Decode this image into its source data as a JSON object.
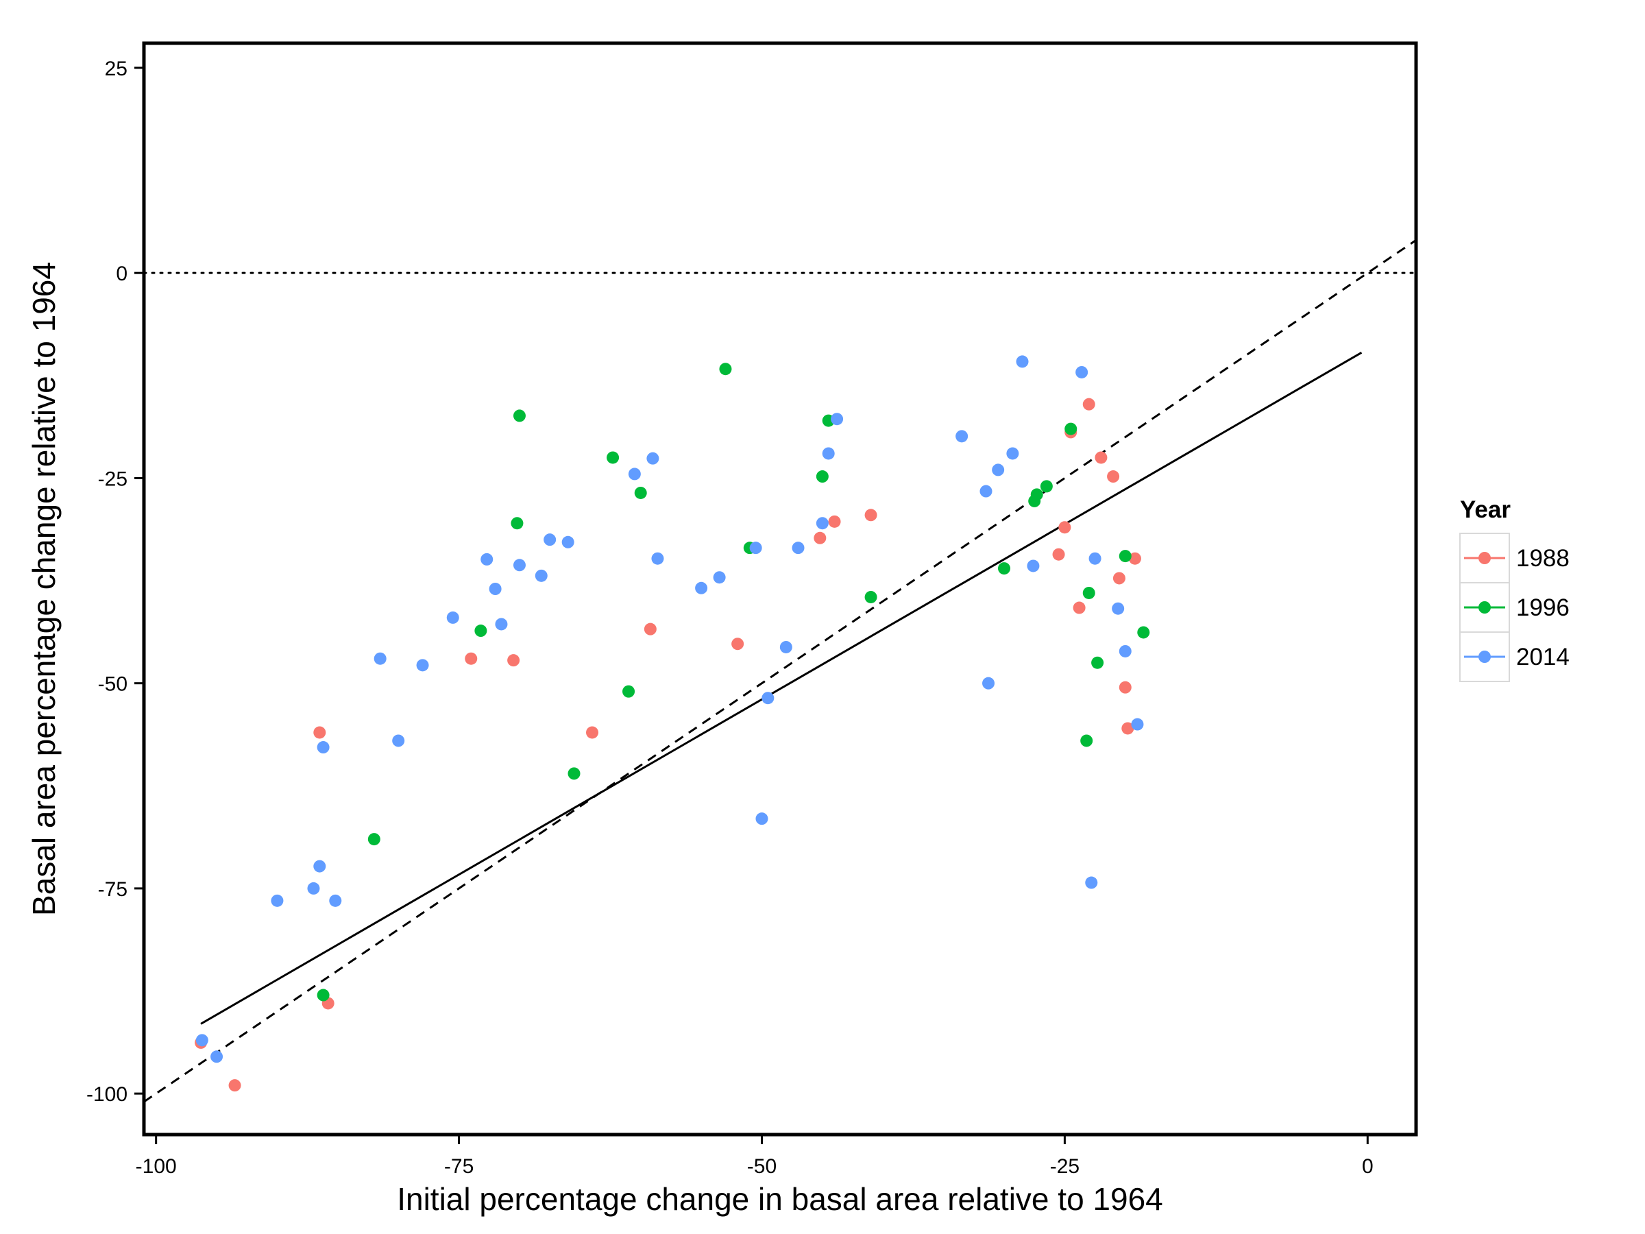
{
  "chart_data": {
    "type": "scatter",
    "title": "",
    "xlabel": "Initial percentage change in basal area relative to 1964",
    "ylabel": "Basal area percentage change relative to 1964",
    "xlim": [
      -101,
      4
    ],
    "ylim": [
      -105,
      28
    ],
    "xticks": [
      -100,
      -75,
      -50,
      -25,
      0
    ],
    "yticks": [
      25,
      0,
      -25,
      -50,
      -75,
      -100
    ],
    "grid": false,
    "legend": {
      "title": "Year",
      "position": "right"
    },
    "series": [
      {
        "name": "1988",
        "color": "#f8766d",
        "points": [
          [
            -96.3,
            -93.8
          ],
          [
            -93.5,
            -99.0
          ],
          [
            -86.5,
            -56.0
          ],
          [
            -85.8,
            -89.0
          ],
          [
            -74.0,
            -47.0
          ],
          [
            -70.5,
            -47.2
          ],
          [
            -64.0,
            -56.0
          ],
          [
            -59.2,
            -43.4
          ],
          [
            -52.0,
            -45.2
          ],
          [
            -45.2,
            -32.3
          ],
          [
            -44.0,
            -30.3
          ],
          [
            -41.0,
            -29.5
          ],
          [
            -25.5,
            -34.3
          ],
          [
            -25.0,
            -31.0
          ],
          [
            -24.5,
            -19.4
          ],
          [
            -23.8,
            -40.8
          ],
          [
            -23.0,
            -16.0
          ],
          [
            -22.0,
            -22.5
          ],
          [
            -21.0,
            -24.8
          ],
          [
            -20.5,
            -37.2
          ],
          [
            -20.0,
            -50.5
          ],
          [
            -19.8,
            -55.5
          ],
          [
            -19.2,
            -34.8
          ]
        ]
      },
      {
        "name": "1996",
        "color": "#00ba38",
        "points": [
          [
            -86.2,
            -88.0
          ],
          [
            -82.0,
            -69.0
          ],
          [
            -73.2,
            -43.6
          ],
          [
            -70.2,
            -30.5
          ],
          [
            -70.0,
            -17.4
          ],
          [
            -65.5,
            -61.0
          ],
          [
            -62.3,
            -22.5
          ],
          [
            -61.0,
            -51.0
          ],
          [
            -60.0,
            -26.8
          ],
          [
            -53.0,
            -11.7
          ],
          [
            -51.0,
            -33.5
          ],
          [
            -45.0,
            -24.8
          ],
          [
            -44.5,
            -18.0
          ],
          [
            -41.0,
            -39.5
          ],
          [
            -30.0,
            -36.0
          ],
          [
            -27.5,
            -27.8
          ],
          [
            -27.3,
            -27.0
          ],
          [
            -26.5,
            -26.0
          ],
          [
            -24.5,
            -19.0
          ],
          [
            -23.2,
            -57.0
          ],
          [
            -23.0,
            -39.0
          ],
          [
            -22.3,
            -47.5
          ],
          [
            -20.0,
            -34.5
          ],
          [
            -18.5,
            -43.8
          ]
        ]
      },
      {
        "name": "2014",
        "color": "#619cff",
        "points": [
          [
            -96.2,
            -93.5
          ],
          [
            -95.0,
            -95.5
          ],
          [
            -90.0,
            -76.5
          ],
          [
            -87.0,
            -75.0
          ],
          [
            -85.2,
            -76.5
          ],
          [
            -86.5,
            -72.3
          ],
          [
            -86.2,
            -57.8
          ],
          [
            -81.5,
            -47.0
          ],
          [
            -80.0,
            -57.0
          ],
          [
            -78.0,
            -47.8
          ],
          [
            -75.5,
            -42.0
          ],
          [
            -72.7,
            -34.9
          ],
          [
            -72.0,
            -38.5
          ],
          [
            -71.5,
            -42.8
          ],
          [
            -70.0,
            -35.6
          ],
          [
            -68.2,
            -36.9
          ],
          [
            -67.5,
            -32.5
          ],
          [
            -66.0,
            -32.8
          ],
          [
            -60.5,
            -24.5
          ],
          [
            -59.0,
            -22.6
          ],
          [
            -58.6,
            -34.8
          ],
          [
            -55.0,
            -38.4
          ],
          [
            -53.5,
            -37.1
          ],
          [
            -50.5,
            -33.5
          ],
          [
            -50.0,
            -66.5
          ],
          [
            -49.5,
            -51.8
          ],
          [
            -48.0,
            -45.6
          ],
          [
            -47.0,
            -33.5
          ],
          [
            -45.0,
            -30.5
          ],
          [
            -44.5,
            -22.0
          ],
          [
            -43.8,
            -17.8
          ],
          [
            -33.5,
            -19.9
          ],
          [
            -31.5,
            -26.6
          ],
          [
            -31.3,
            -50.0
          ],
          [
            -30.5,
            -24.0
          ],
          [
            -29.3,
            -22.0
          ],
          [
            -28.5,
            -10.8
          ],
          [
            -27.6,
            -35.7
          ],
          [
            -23.6,
            -12.1
          ],
          [
            -22.8,
            -74.3
          ],
          [
            -22.5,
            -34.8
          ],
          [
            -20.6,
            -40.9
          ],
          [
            -20.0,
            -46.1
          ],
          [
            -19.0,
            -55.0
          ]
        ]
      }
    ],
    "reference_lines": {
      "zero_line": {
        "style": "dotted",
        "y": 0
      },
      "one_to_one": {
        "style": "dashed",
        "from": [
          -101,
          -101
        ],
        "to": [
          4,
          4
        ]
      },
      "fit": {
        "style": "solid",
        "from": [
          -96.3,
          -91.5
        ],
        "to": [
          -0.5,
          -9.7
        ]
      }
    }
  }
}
